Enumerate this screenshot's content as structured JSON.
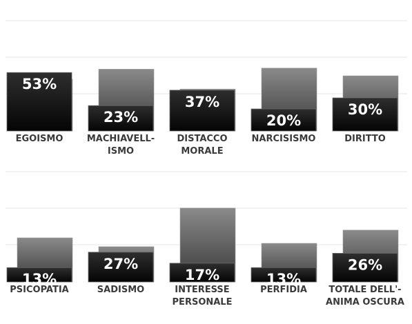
{
  "chart_data": {
    "type": "bar",
    "panels": [
      {
        "categories": [
          [
            "EGOISMO"
          ],
          [
            "MACHIAVELL-",
            "ISMO"
          ],
          [
            "DISTACCO",
            "MORALE"
          ],
          [
            "NARCISISMO"
          ],
          [
            "DIRITTO"
          ]
        ],
        "values": [
          53,
          23,
          37,
          20,
          30
        ],
        "value_labels": [
          "53%",
          "23%",
          "37%",
          "20%",
          "30%"
        ],
        "back_values": [
          47,
          56,
          38,
          57,
          50
        ]
      },
      {
        "categories": [
          [
            "PSICOPATIA"
          ],
          [
            "SADISMO"
          ],
          [
            "INTERESSE",
            "PERSONALE"
          ],
          [
            "PERFIDIA"
          ],
          [
            "TOTALE DELL'-",
            "ANIMA OSCURA"
          ]
        ],
        "values": [
          13,
          27,
          17,
          13,
          26
        ],
        "value_labels": [
          "13%",
          "27%",
          "17%",
          "13%",
          "26%"
        ],
        "back_values": [
          40,
          32,
          67,
          35,
          47
        ]
      }
    ],
    "ylim": [
      0,
      100
    ],
    "grid": true,
    "legend": "none"
  },
  "colors": {
    "front_top": "#2e2e2e",
    "front_bottom": "#050505",
    "back_top": "#8a8a8a",
    "back_bottom": "#3a3a3a",
    "grid": "#e6e6e6"
  }
}
